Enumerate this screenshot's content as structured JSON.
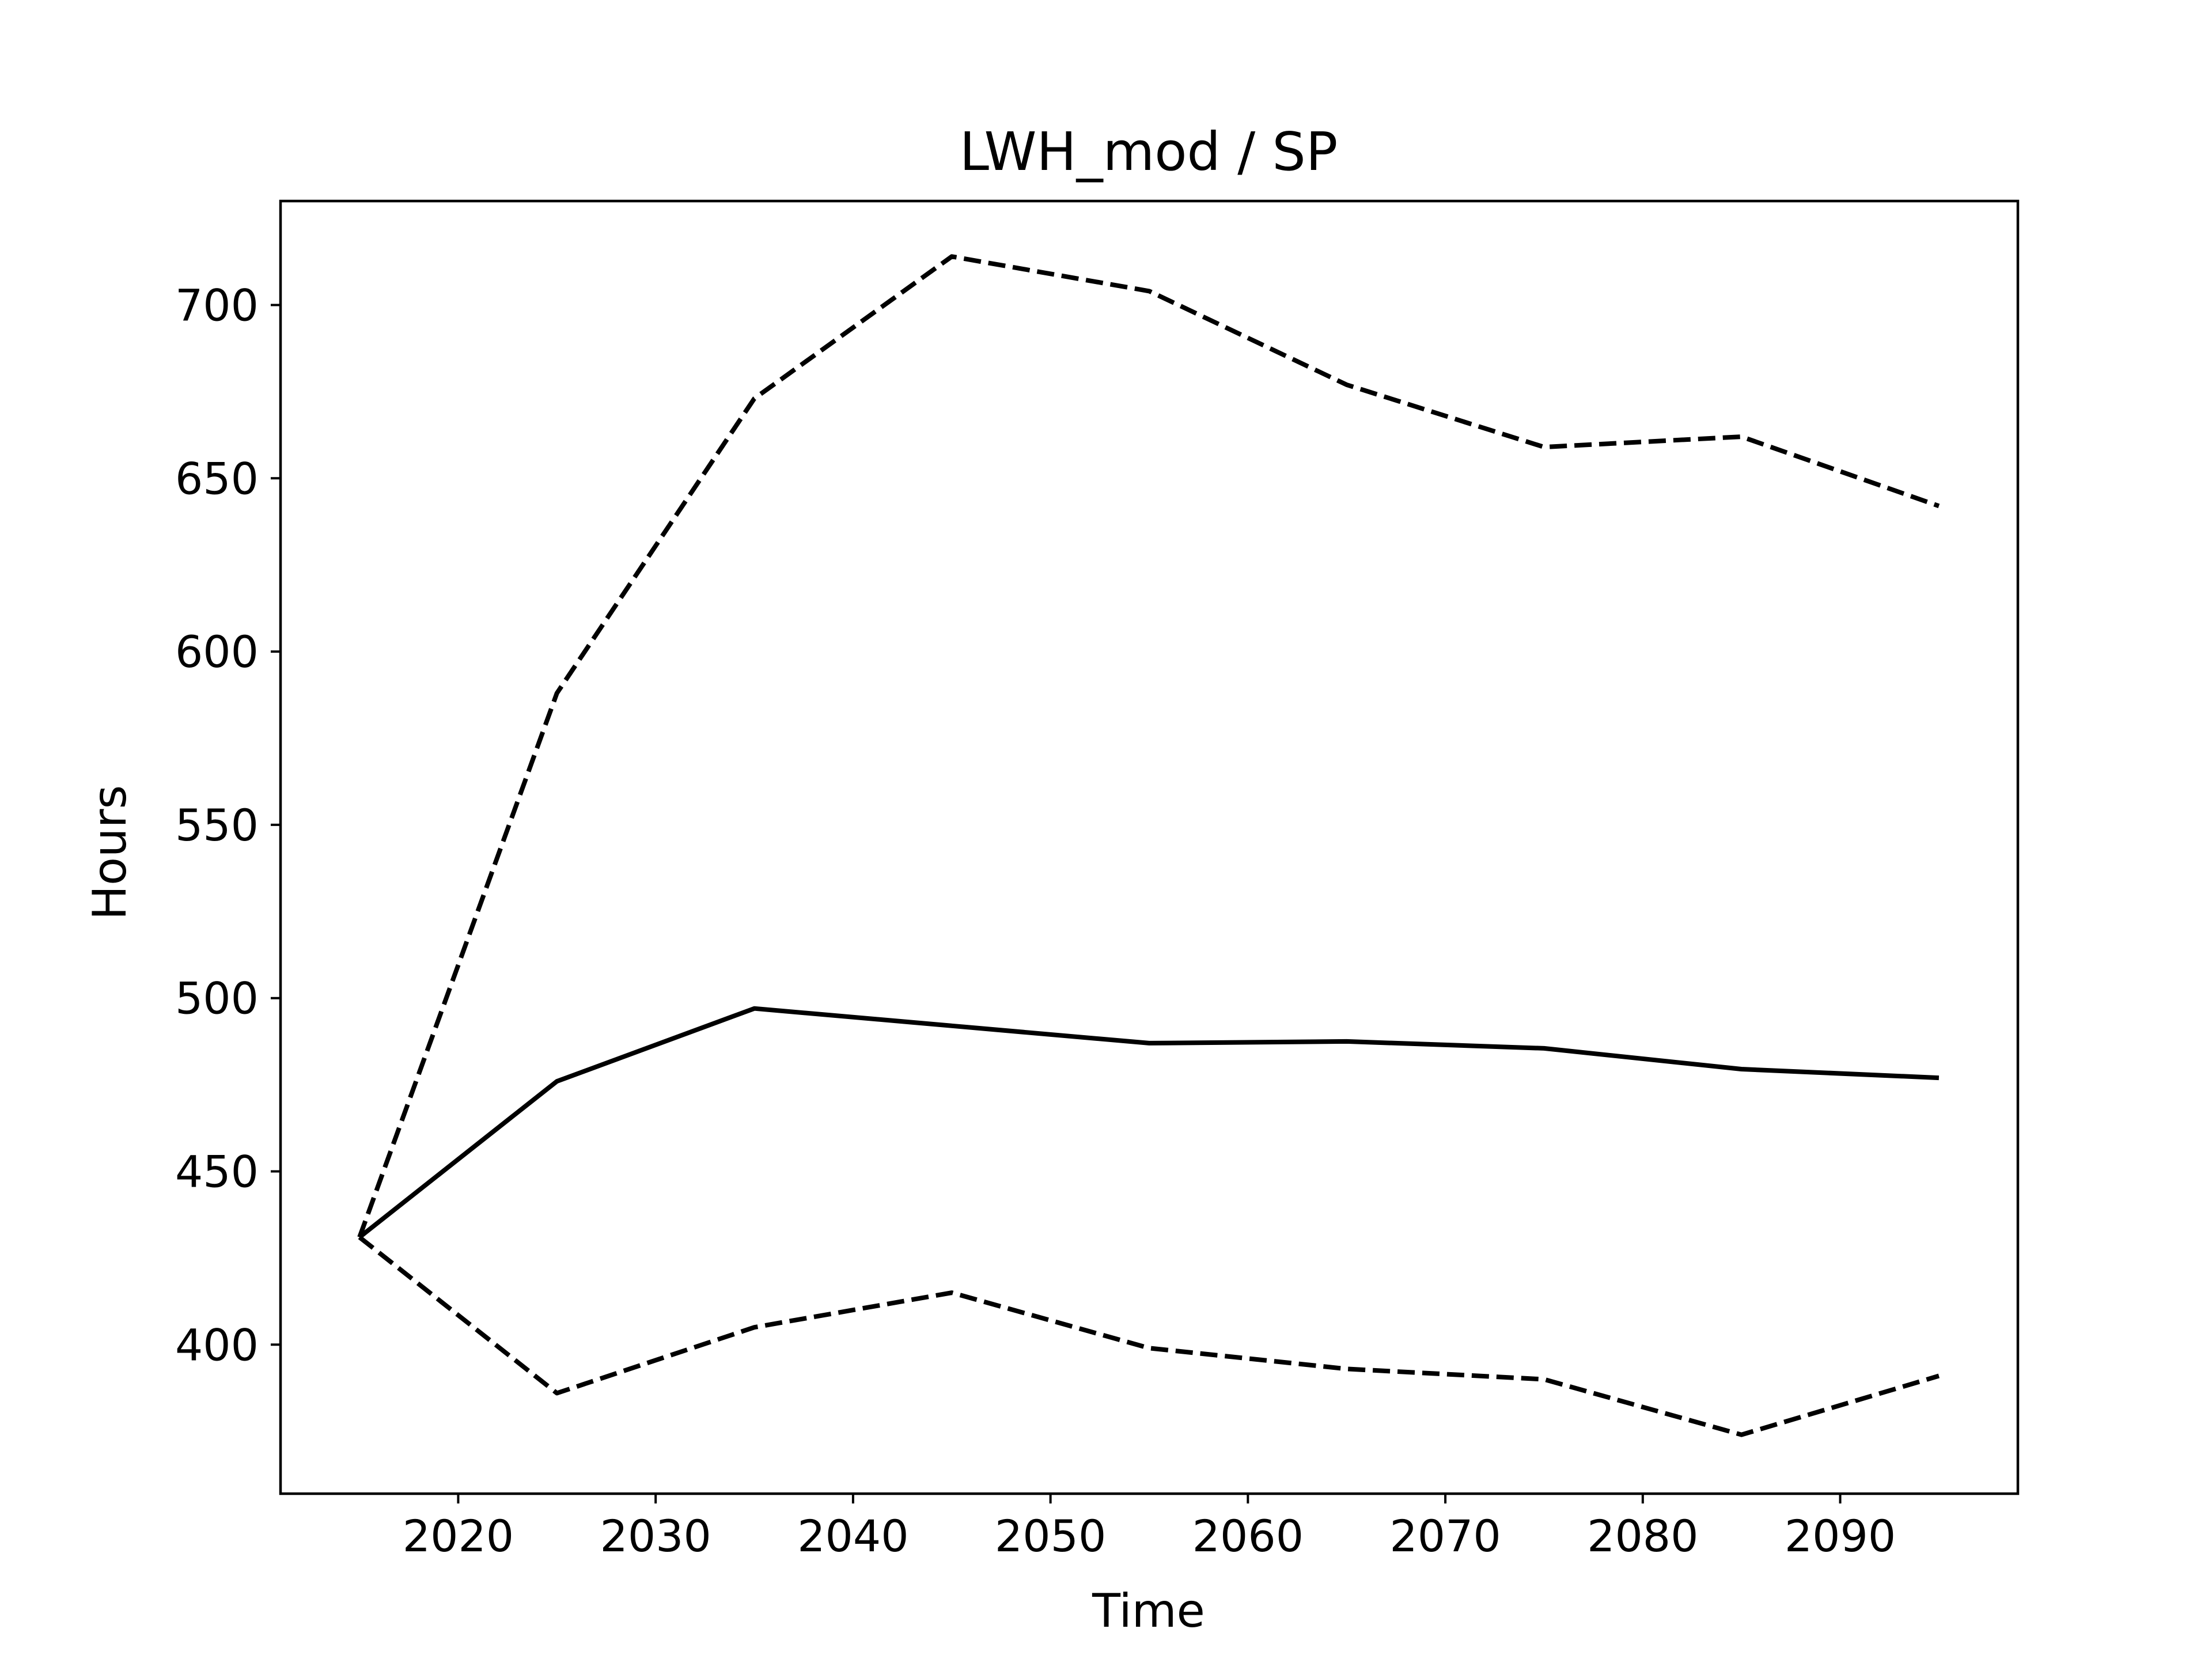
{
  "chart_data": {
    "type": "line",
    "title": "LWH_mod / SP",
    "xlabel": "Time",
    "ylabel": "Hours",
    "x": [
      2015,
      2025,
      2035,
      2045,
      2055,
      2065,
      2075,
      2085,
      2095
    ],
    "series": [
      {
        "style": "solid",
        "values": [
          431,
          476,
          497,
          492,
          487,
          487.5,
          485.5,
          479.5,
          477
        ]
      },
      {
        "style": "dashed",
        "values": [
          431,
          588,
          673,
          714,
          704,
          677,
          659,
          662,
          642
        ]
      },
      {
        "style": "dashed",
        "values": [
          431,
          386,
          405,
          415,
          399,
          393,
          390,
          374,
          391
        ]
      }
    ],
    "xlim": [
      2011,
      2099
    ],
    "ylim": [
      357,
      730
    ],
    "xticks": [
      2020,
      2030,
      2040,
      2050,
      2060,
      2070,
      2080,
      2090
    ],
    "yticks": [
      400,
      450,
      500,
      550,
      600,
      650,
      700
    ],
    "grid": false,
    "line_color": "#000000"
  }
}
